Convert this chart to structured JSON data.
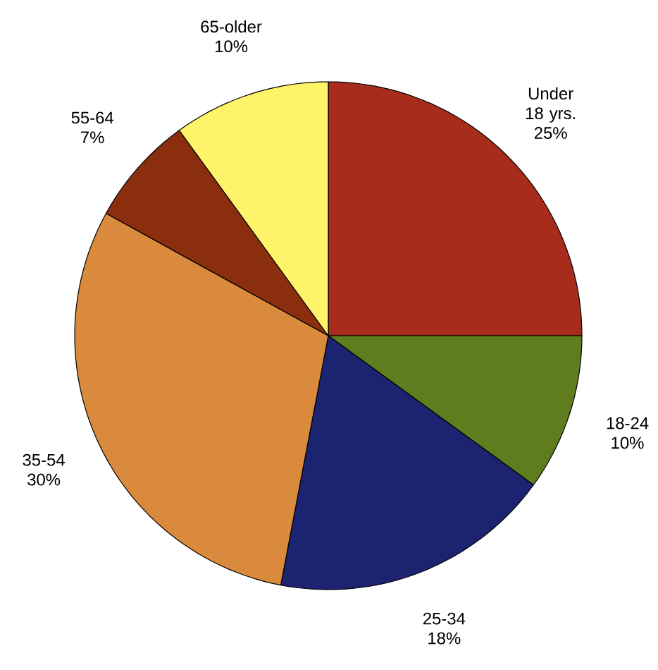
{
  "chart_data": {
    "type": "pie",
    "categories": [
      "Under 18 yrs.",
      "18-24",
      "25-34",
      "35-54",
      "55-64",
      "65-older"
    ],
    "values": [
      25,
      10,
      18,
      30,
      7,
      10
    ],
    "colors": [
      "#a82c1c",
      "#5f7d1e",
      "#1c2472",
      "#d98a3c",
      "#8a2e0e",
      "#fff36a"
    ],
    "value_labels": [
      "25%",
      "10%",
      "18%",
      "30%",
      "7%",
      "10%"
    ]
  }
}
